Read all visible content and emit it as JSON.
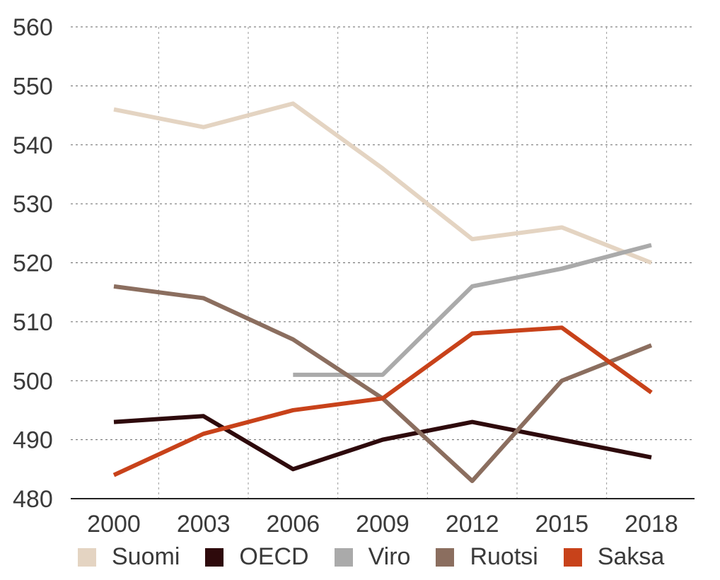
{
  "chart_data": {
    "type": "line",
    "title": "",
    "xlabel": "",
    "ylabel": "",
    "x": [
      "2000",
      "2003",
      "2006",
      "2009",
      "2012",
      "2015",
      "2018"
    ],
    "ylim": [
      480,
      560
    ],
    "yticks": [
      480,
      490,
      500,
      510,
      520,
      530,
      540,
      550,
      560
    ],
    "grid": true,
    "legend_position": "bottom",
    "series": [
      {
        "name": "Suomi",
        "color": "#e4d4c2",
        "values": [
          546,
          543,
          547,
          536,
          524,
          526,
          520
        ]
      },
      {
        "name": "OECD",
        "color": "#2e0a0c",
        "values": [
          493,
          494,
          485,
          490,
          493,
          490,
          487
        ]
      },
      {
        "name": "Viro",
        "color": "#aaaaaa",
        "values": [
          null,
          null,
          501,
          501,
          516,
          519,
          523
        ]
      },
      {
        "name": "Ruotsi",
        "color": "#8b6e5f",
        "values": [
          516,
          514,
          507,
          497,
          483,
          500,
          506
        ]
      },
      {
        "name": "Saksa",
        "color": "#c8421a",
        "values": [
          484,
          491,
          495,
          497,
          508,
          509,
          498
        ]
      }
    ]
  }
}
